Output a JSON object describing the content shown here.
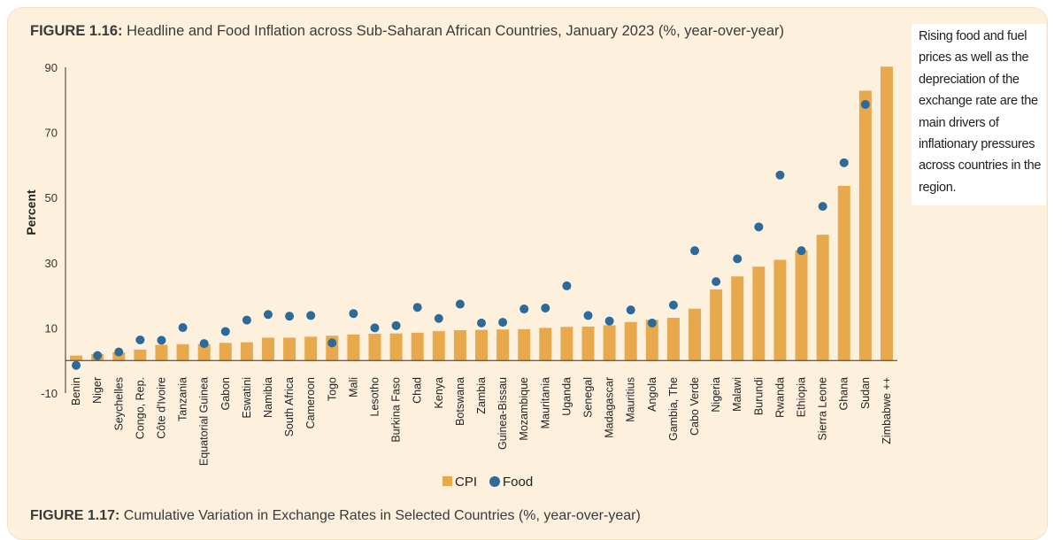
{
  "figure": {
    "number": "FIGURE 1.16:",
    "title": " Headline and Food Inflation across Sub-Saharan African Countries, January 2023 (%, year-over-year)"
  },
  "sidebar_text": "Rising food and fuel prices as well as the depreciation of the exchange rate are the main drivers of inflationary pressures across countries in the region.",
  "next_figure": {
    "number": "FIGURE 1.17:",
    "title": " Cumulative Variation in Exchange Rates in Selected Countries (%, year-over-year)"
  },
  "colors": {
    "cpi": "#e8a84c",
    "food": "#2b6a99",
    "axis": "#333333",
    "panel": "#fdf1de"
  },
  "chart_data": {
    "type": "bar",
    "ylabel": "Percent",
    "xlabel": "",
    "ylim": [
      -10,
      90
    ],
    "yticks": [
      -10,
      10,
      30,
      50,
      70,
      90
    ],
    "grid": false,
    "legend": "bottom-center",
    "categories": [
      "Benin",
      "Niger",
      "Seychelles",
      "Congo, Rep.",
      "Côte d'Ivoire",
      "Tanzania",
      "Equatorial Guinea",
      "Gabon",
      "Eswatini",
      "Namibia",
      "South Africa",
      "Cameroon",
      "Togo",
      "Mali",
      "Lesotho",
      "Burkina Faso",
      "Chad",
      "Kenya",
      "Botswana",
      "Zambia",
      "Guinea-Bissau",
      "Mozambique",
      "Mauritania",
      "Uganda",
      "Senegal",
      "Madagascar",
      "Mauritius",
      "Angola",
      "Gambia, The",
      "Cabo Verde",
      "Nigeria",
      "Malawi",
      "Burundi",
      "Rwanda",
      "Ethiopia",
      "Sierra Leone",
      "Ghana",
      "Sudan",
      "Zimbabwe ++"
    ],
    "series": [
      {
        "name": "CPI",
        "type": "bar",
        "values": [
          1.5,
          2.0,
          2.5,
          3.3,
          4.8,
          5.0,
          5.0,
          5.4,
          5.6,
          7.0,
          7.0,
          7.3,
          7.6,
          8.0,
          8.2,
          8.3,
          8.5,
          9.0,
          9.3,
          9.4,
          9.5,
          9.6,
          10.0,
          10.3,
          10.4,
          10.8,
          11.8,
          12.5,
          13.1,
          15.9,
          21.8,
          25.8,
          28.8,
          30.9,
          33.8,
          38.6,
          53.6,
          82.8,
          90.2
        ]
      },
      {
        "name": "Food",
        "type": "scatter",
        "values": [
          -1.5,
          1.5,
          2.6,
          6.3,
          6.2,
          10.1,
          5.2,
          8.9,
          12.4,
          14.1,
          13.6,
          13.8,
          5.4,
          14.4,
          10.0,
          10.7,
          16.3,
          12.9,
          17.3,
          11.5,
          11.7,
          15.8,
          16.1,
          22.9,
          13.8,
          12.1,
          15.5,
          11.5,
          17.0,
          33.7,
          24.2,
          31.2,
          41.0,
          56.9,
          33.7,
          47.3,
          60.7,
          78.6,
          null
        ]
      }
    ]
  }
}
